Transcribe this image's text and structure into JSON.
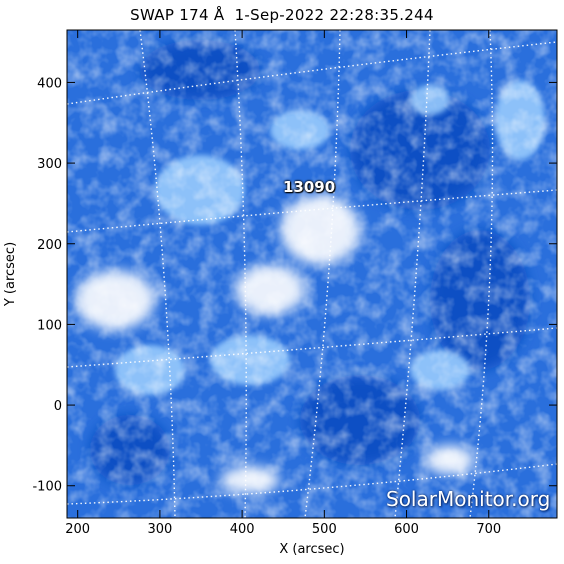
{
  "title": "SWAP 174 Å  1-Sep-2022 22:28:35.244",
  "axes": {
    "x_label": "X (arcsec)",
    "y_label": "Y (arcsec)",
    "x_ticks": [
      "200",
      "300",
      "400",
      "500",
      "600",
      "700"
    ],
    "y_ticks": [
      "-100",
      "0",
      "100",
      "200",
      "300",
      "400"
    ],
    "x_range": [
      187,
      783
    ],
    "y_range": [
      -140,
      465
    ]
  },
  "active_region_label": "13090",
  "watermark": "SolarMonitor.org",
  "colors": {
    "background": "#ffffff",
    "image_base": "#1a63d8",
    "image_bright": "#ffffff",
    "grid": "#ffffff"
  }
}
